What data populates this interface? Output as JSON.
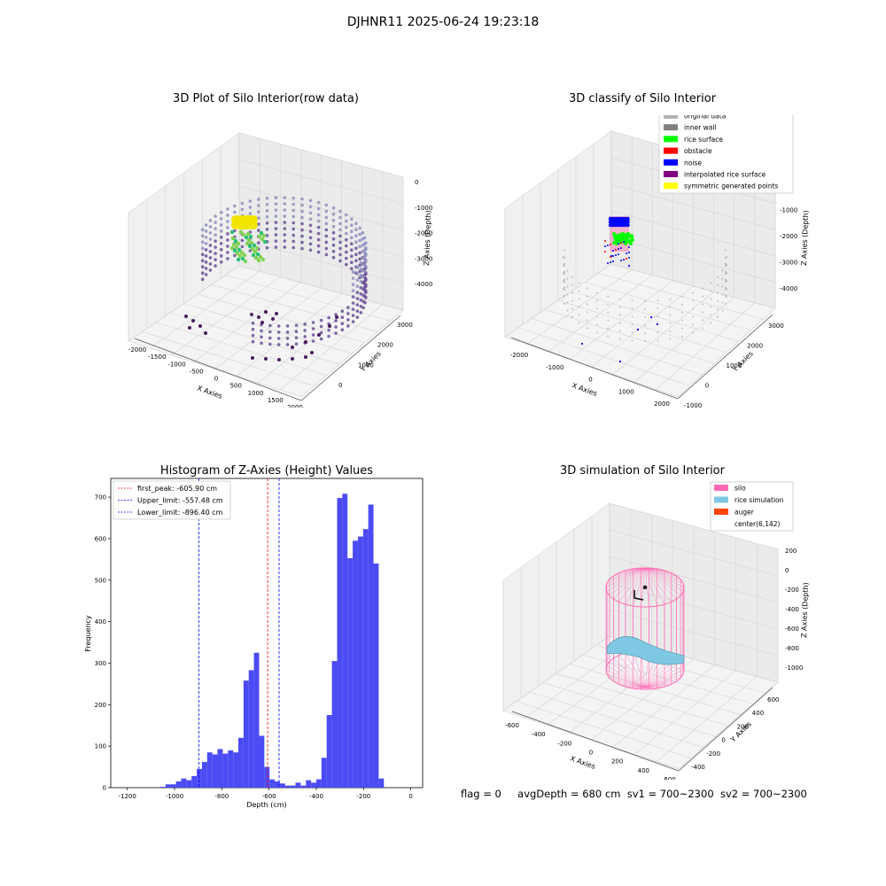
{
  "figure_title": "DJHNR11 2025-06-24 19:23:18",
  "status_line": {
    "flag": "flag = 0",
    "avg_depth": "avgDepth = 680 cm",
    "sv1": "sv1 = 700~2300",
    "sv2": "sv2 = 700~2300"
  },
  "colors": {
    "original": "#b3b3b3",
    "inner_wall": "#808080",
    "rice_surface": "#00ff00",
    "obstacle": "#ff0000",
    "noise": "#0000ff",
    "interpolated": "#800080",
    "symmetric": "#ffff00",
    "silo": "#ff69b4",
    "rice_sim": "#7ec8e3",
    "auger": "#ff4500",
    "hist_bar": "#4b4bf5"
  },
  "chart_data": [
    {
      "type": "scatter",
      "title": "3D Plot of Silo Interior(row data)",
      "xlabel": "X Axies",
      "ylabel": "Y Axies",
      "zlabel": "Z Axies (Depth)",
      "x_ticks": [
        "-2000",
        "-1500",
        "-1000",
        "-500",
        "0",
        "500",
        "1000",
        "1500",
        "2000"
      ],
      "y_ticks": [
        "0",
        "1000",
        "2000",
        "3000"
      ],
      "z_ticks": [
        "0",
        "-1000",
        "-2000",
        "-3000",
        "-4000"
      ]
    },
    {
      "type": "scatter",
      "title": "3D classify of Silo Interior",
      "xlabel": "X Axies",
      "ylabel": "Y Axies",
      "zlabel": "Z Axies (Depth)",
      "x_ticks": [
        "-2000",
        "-1000",
        "0",
        "1000",
        "2000"
      ],
      "y_ticks": [
        "-1000",
        "0",
        "1000",
        "2000",
        "3000"
      ],
      "z_ticks": [
        "0",
        "-1000",
        "-2000",
        "-3000",
        "-4000"
      ],
      "legend": [
        {
          "label": "original data",
          "color": "#b3b3b3"
        },
        {
          "label": "inner wall",
          "color": "#808080"
        },
        {
          "label": "rice surface",
          "color": "#00ff00"
        },
        {
          "label": "obstacle",
          "color": "#ff0000"
        },
        {
          "label": "noise",
          "color": "#0000ff"
        },
        {
          "label": "interpolated rice surface",
          "color": "#800080"
        },
        {
          "label": "symmetric generated points",
          "color": "#ffff00"
        }
      ],
      "legend_loc": "upper right"
    },
    {
      "type": "bar",
      "title": "Histogram of Z-Axies (Height) Values",
      "xlabel": "Depth (cm)",
      "ylabel": "Frequency",
      "xlim": [
        -1270,
        50
      ],
      "ylim": [
        0,
        745
      ],
      "x_ticks": [
        -1200,
        -1000,
        -800,
        -600,
        -400,
        -200,
        0
      ],
      "y_ticks": [
        0,
        100,
        200,
        300,
        400,
        500,
        600,
        700
      ],
      "bin_width": 22,
      "bins": [
        {
          "x": -1060,
          "y": 2
        },
        {
          "x": -1038,
          "y": 8
        },
        {
          "x": -1016,
          "y": 8
        },
        {
          "x": -994,
          "y": 15
        },
        {
          "x": -972,
          "y": 22
        },
        {
          "x": -950,
          "y": 18
        },
        {
          "x": -928,
          "y": 28
        },
        {
          "x": -906,
          "y": 45
        },
        {
          "x": -884,
          "y": 62
        },
        {
          "x": -862,
          "y": 85
        },
        {
          "x": -840,
          "y": 80
        },
        {
          "x": -818,
          "y": 93
        },
        {
          "x": -796,
          "y": 82
        },
        {
          "x": -774,
          "y": 90
        },
        {
          "x": -752,
          "y": 85
        },
        {
          "x": -730,
          "y": 120
        },
        {
          "x": -708,
          "y": 258
        },
        {
          "x": -686,
          "y": 283
        },
        {
          "x": -664,
          "y": 325
        },
        {
          "x": -642,
          "y": 125
        },
        {
          "x": -620,
          "y": 50
        },
        {
          "x": -598,
          "y": 20
        },
        {
          "x": -576,
          "y": 15
        },
        {
          "x": -554,
          "y": 10
        },
        {
          "x": -532,
          "y": 5
        },
        {
          "x": -510,
          "y": 5
        },
        {
          "x": -488,
          "y": 12
        },
        {
          "x": -466,
          "y": 5
        },
        {
          "x": -444,
          "y": 18
        },
        {
          "x": -422,
          "y": 12
        },
        {
          "x": -400,
          "y": 20
        },
        {
          "x": -378,
          "y": 72
        },
        {
          "x": -356,
          "y": 175
        },
        {
          "x": -334,
          "y": 305
        },
        {
          "x": -312,
          "y": 698
        },
        {
          "x": -290,
          "y": 708
        },
        {
          "x": -268,
          "y": 553
        },
        {
          "x": -246,
          "y": 595
        },
        {
          "x": -224,
          "y": 605
        },
        {
          "x": -202,
          "y": 623
        },
        {
          "x": -180,
          "y": 682
        },
        {
          "x": -158,
          "y": 540
        },
        {
          "x": -136,
          "y": 22
        }
      ],
      "vlines": [
        {
          "label": "first_peak: -605.90 cm",
          "x": -605.9,
          "color": "#ff0000"
        },
        {
          "label": "Upper_limit: -557.48 cm",
          "x": -557.48,
          "color": "#0000ff"
        },
        {
          "label": "Lower_limit: -896.40 cm",
          "x": -896.4,
          "color": "#0000ff"
        }
      ],
      "legend_loc": "upper left"
    },
    {
      "type": "scatter",
      "title": "3D simulation of Silo Interior",
      "xlabel": "X Axies",
      "ylabel": "Y Axies",
      "zlabel": "Z Axies (Depth)",
      "x_ticks": [
        "-600",
        "-400",
        "-200",
        "0",
        "200",
        "400",
        "600"
      ],
      "y_ticks": [
        "-400",
        "-200",
        "0",
        "200",
        "400",
        "600"
      ],
      "z_ticks": [
        "200",
        "0",
        "-200",
        "-400",
        "-600",
        "-800",
        "-1000"
      ],
      "legend": [
        {
          "label": "silo",
          "color": "#ff69b4"
        },
        {
          "label": "rice simulation",
          "color": "#7ec8e3"
        },
        {
          "label": "auger",
          "color": "#ff4500"
        },
        {
          "label": "center(6,142)",
          "color": ""
        }
      ],
      "legend_loc": "upper right"
    }
  ]
}
